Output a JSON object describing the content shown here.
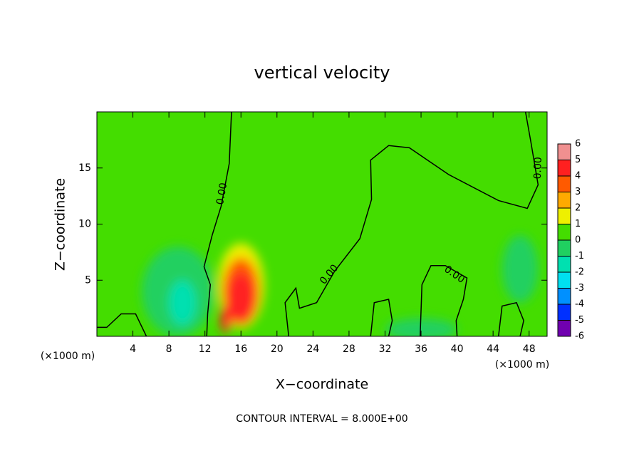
{
  "chart_data": {
    "type": "contour",
    "title": "vertical velocity",
    "xlabel": "X−coordinate",
    "ylabel": "Z−coordinate",
    "x_unit_left": "(×1000 m)",
    "x_unit_right": "(×1000 m)",
    "footer": "CONTOUR INTERVAL = 8.000E+00",
    "xlim": [
      0,
      50
    ],
    "ylim": [
      0,
      20
    ],
    "xticks": [
      4,
      8,
      12,
      16,
      20,
      24,
      28,
      32,
      36,
      40,
      44,
      48
    ],
    "yticks": [
      5,
      10,
      15
    ],
    "background_color": "#44dd00",
    "blobs": [
      {
        "x": 9,
        "y": 4,
        "rx": 4,
        "ry": 4,
        "value": -0.5
      },
      {
        "x": 9.5,
        "y": 3,
        "rx": 1.5,
        "ry": 2,
        "value": -1.5
      },
      {
        "x": 36,
        "y": 0.6,
        "rx": 4,
        "ry": 1,
        "value": -0.5
      },
      {
        "x": 47,
        "y": 6,
        "rx": 2,
        "ry": 3,
        "value": -0.3
      },
      {
        "x": 16,
        "y": 4.5,
        "rx": 2.6,
        "ry": 3.8,
        "value": 1.5
      },
      {
        "x": 16,
        "y": 4,
        "rx": 2,
        "ry": 3,
        "value": 3
      },
      {
        "x": 16,
        "y": 3.5,
        "rx": 1.5,
        "ry": 2.2,
        "value": 4.5
      },
      {
        "x": 14.3,
        "y": 1.5,
        "rx": 0.6,
        "ry": 1.2,
        "value": 4
      }
    ],
    "contours": [
      {
        "x": [
          14.95,
          14.7,
          13.8,
          12.8,
          11.9,
          12.6,
          12.3,
          12.2
        ],
        "y": [
          20,
          15.4,
          11.6,
          9.0,
          6.2,
          4.6,
          2.0,
          0
        ]
      },
      {
        "x": [
          21.3,
          20.9,
          22.1,
          22.5,
          24.4,
          26.4,
          29.2,
          30.5,
          30.4,
          32.4,
          34.7,
          39.1,
          44.6,
          47.8,
          49.0,
          48.2,
          47.6
        ],
        "y": [
          0,
          3.0,
          4.3,
          2.5,
          3.0,
          5.8,
          8.7,
          12.2,
          15.7,
          17.0,
          16.8,
          14.4,
          12.1,
          11.4,
          13.5,
          17.3,
          20
        ]
      },
      {
        "x": [
          35.9,
          36.1,
          37.1,
          38.7,
          41.1,
          40.7,
          39.9,
          40.0
        ],
        "y": [
          0,
          4.6,
          6.3,
          6.3,
          5.2,
          3.3,
          1.4,
          0
        ]
      },
      {
        "x": [
          0,
          1.1,
          2.7,
          4.3,
          5.5
        ],
        "y": [
          0.8,
          0.8,
          2.0,
          2.0,
          0
        ]
      },
      {
        "x": [
          30.4,
          30.8,
          32.4,
          32.8,
          32.4
        ],
        "y": [
          0,
          3,
          3.3,
          1.4,
          0
        ]
      },
      {
        "x": [
          44.6,
          45.0,
          46.6,
          47.4,
          47
        ],
        "y": [
          0,
          2.7,
          3,
          1.4,
          0
        ]
      }
    ],
    "contour_labels": [
      {
        "text": "0.00",
        "x": 13.9,
        "y": 12.7
      },
      {
        "text": "0.00",
        "x": 25.8,
        "y": 5.5
      },
      {
        "text": "0.00",
        "x": 39.7,
        "y": 5.5
      },
      {
        "text": "0.00",
        "x": 49.0,
        "y": 15.0
      }
    ],
    "colorbar": {
      "ticks": [
        6,
        5,
        4,
        3,
        2,
        1,
        0,
        -1,
        -2,
        -3,
        -4,
        -5,
        -6
      ],
      "colors": [
        "#f09090",
        "#ff2020",
        "#ff5a00",
        "#ffaa00",
        "#eef000",
        "#44dd00",
        "#20d060",
        "#00e0b0",
        "#00e0f0",
        "#0090ff",
        "#0030ff",
        "#7000b0"
      ]
    }
  }
}
